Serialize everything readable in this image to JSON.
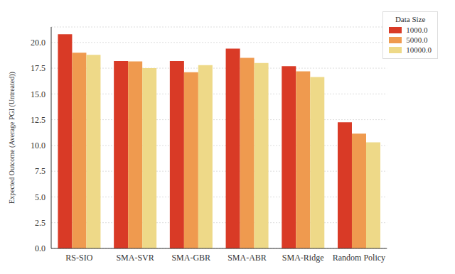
{
  "chart_data": {
    "type": "bar",
    "y_label": "Expected Outcome (Average PGI (Untreated))",
    "legend_title": "Data Size",
    "legend": "top-right",
    "grid": true,
    "categories": [
      "RS-SIO",
      "SMA-SVR",
      "SMA-GBR",
      "SMA-ABR",
      "SMA-Ridge",
      "Random Policy"
    ],
    "series": [
      {
        "name": "1000.0",
        "color": "#d93a26",
        "values": [
          20.8,
          18.2,
          18.2,
          19.4,
          17.7,
          12.25
        ]
      },
      {
        "name": "5000.0",
        "color": "#ef9a4f",
        "values": [
          19.0,
          18.15,
          17.1,
          18.5,
          17.2,
          11.15
        ]
      },
      {
        "name": "10000.0",
        "color": "#eed988",
        "values": [
          18.8,
          17.5,
          17.8,
          18.0,
          16.65,
          10.3
        ]
      }
    ],
    "ylim": [
      0,
      21.5
    ],
    "yticks": [
      {
        "value": 0,
        "label": "0.0"
      },
      {
        "value": 2.5,
        "label": "2.5"
      },
      {
        "value": 5,
        "label": "5.0"
      },
      {
        "value": 7.5,
        "label": "7.5"
      },
      {
        "value": 10,
        "label": "10.0"
      },
      {
        "value": 12.5,
        "label": "12.5"
      },
      {
        "value": 15,
        "label": "15.0"
      },
      {
        "value": 17.5,
        "label": "17.5"
      },
      {
        "value": 20,
        "label": "20.0"
      }
    ]
  }
}
